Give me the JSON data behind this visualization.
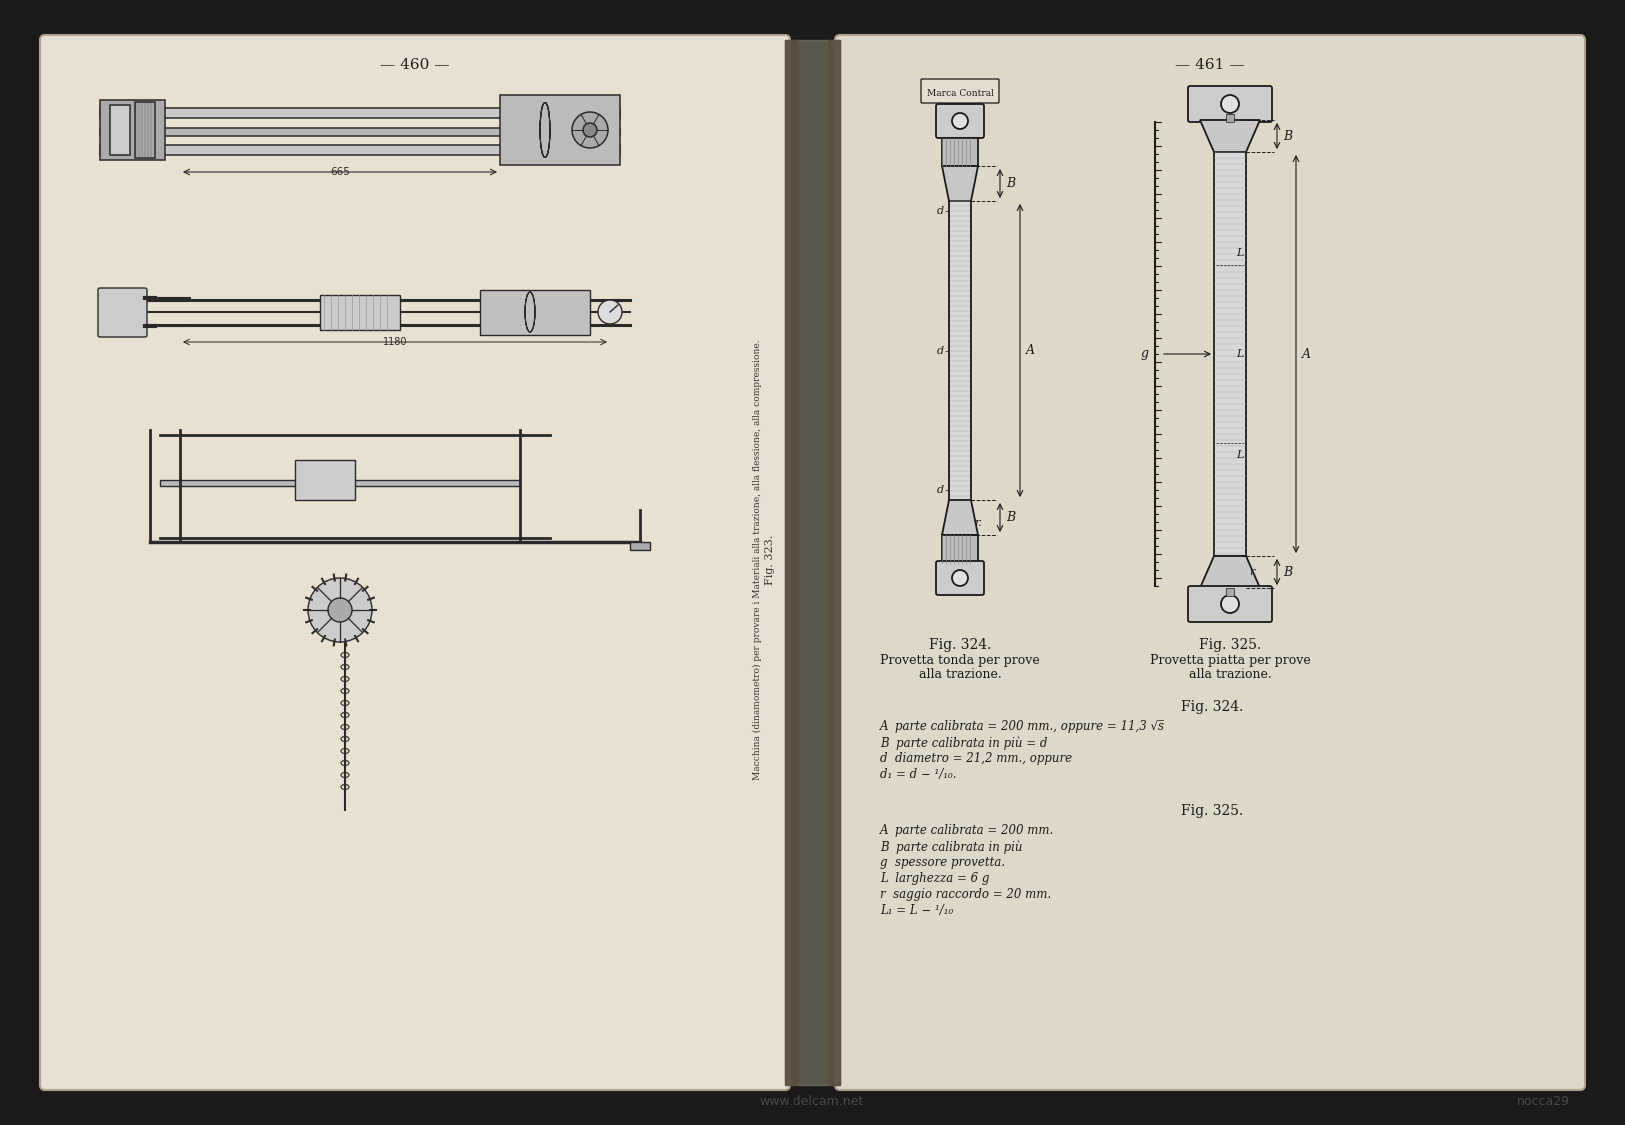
{
  "background_color": "#1a1a1a",
  "page_left_bg": "#e8e0d0",
  "page_right_bg": "#ddd8c8",
  "page_num_left": "— 460 —",
  "page_num_right": "— 461 —",
  "fig323_caption": "Fig. 323.",
  "fig323_subcaption": "Macchina (dinamometro) per provare i Materiali alla trazione, alla flessione, alla compressione.",
  "fig324_label": "Fig. 324.",
  "fig324_caption1": "Provetta tonda per prove",
  "fig324_caption2": "alla trazione.",
  "fig325_label": "Fig. 325.",
  "fig325_caption1": "Provetta piatta per prove",
  "fig325_caption2": "alla trazione.",
  "fig324_title": "Fig. 324.",
  "fig324_A": "A  parte calibrata = 200 mm., oppure = 11,3 √s̅",
  "fig324_B": "B  parte calibrata in più = d",
  "fig324_d": "d  diametro = 21,2 mm., oppure",
  "fig324_d1": "d₁ = d − ¹/₁₀.",
  "fig325_title": "Fig. 325.",
  "fig325_A": "A  parte calibrata = 200 mm.",
  "fig325_B": "B  parte calibrata in più",
  "fig325_g": "g  spessore provetta.",
  "fig325_L": "L  larghezza = 6 g",
  "fig325_r": "r  saggio raccordo = 20 mm.",
  "fig325_L1": "L₁ = L − ¹/₁₀",
  "watermark": "www.delcam.net",
  "seller": "nocca29"
}
